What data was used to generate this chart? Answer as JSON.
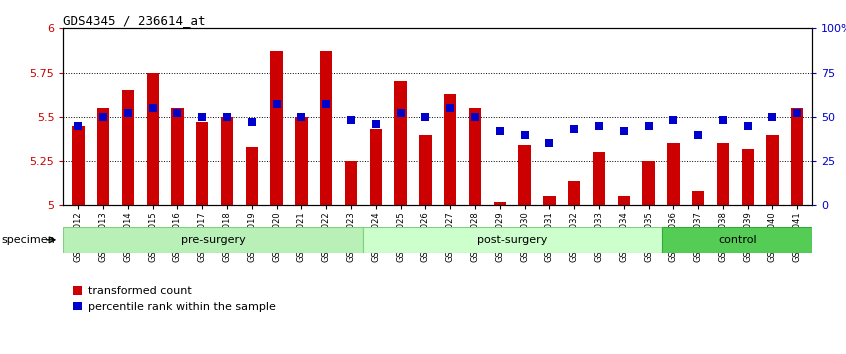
{
  "title": "GDS4345 / 236614_at",
  "samples": [
    "GSM842012",
    "GSM842013",
    "GSM842014",
    "GSM842015",
    "GSM842016",
    "GSM842017",
    "GSM842018",
    "GSM842019",
    "GSM842020",
    "GSM842021",
    "GSM842022",
    "GSM842023",
    "GSM842024",
    "GSM842025",
    "GSM842026",
    "GSM842027",
    "GSM842028",
    "GSM842029",
    "GSM842030",
    "GSM842031",
    "GSM842032",
    "GSM842033",
    "GSM842034",
    "GSM842035",
    "GSM842036",
    "GSM842037",
    "GSM842038",
    "GSM842039",
    "GSM842040",
    "GSM842041"
  ],
  "red_values": [
    5.45,
    5.55,
    5.65,
    5.75,
    5.55,
    5.47,
    5.5,
    5.33,
    5.87,
    5.5,
    5.87,
    5.25,
    5.43,
    5.7,
    5.4,
    5.63,
    5.55,
    5.02,
    5.34,
    5.05,
    5.14,
    5.3,
    5.05,
    5.25,
    5.35,
    5.08,
    5.35,
    5.32,
    5.4,
    5.55
  ],
  "blue_percentiles": [
    45,
    50,
    52,
    55,
    52,
    50,
    50,
    47,
    57,
    50,
    57,
    48,
    46,
    52,
    50,
    55,
    50,
    42,
    40,
    35,
    43,
    45,
    42,
    45,
    48,
    40,
    48,
    45,
    50,
    52
  ],
  "groups": [
    {
      "label": "pre-surgery",
      "start": 0,
      "end": 12,
      "color": "#b8f0b8"
    },
    {
      "label": "post-surgery",
      "start": 12,
      "end": 24,
      "color": "#ccffcc"
    },
    {
      "label": "control",
      "start": 24,
      "end": 30,
      "color": "#55cc55"
    }
  ],
  "ylim_left": [
    5.0,
    6.0
  ],
  "ylim_right": [
    0,
    100
  ],
  "yticks_left": [
    5.0,
    5.25,
    5.5,
    5.75,
    6.0
  ],
  "yticks_right": [
    0,
    25,
    50,
    75,
    100
  ],
  "ytick_labels_left": [
    "5",
    "5.25",
    "5.5",
    "5.75",
    "6"
  ],
  "ytick_labels_right": [
    "0",
    "25",
    "50",
    "75",
    "100%"
  ],
  "grid_values": [
    5.25,
    5.5,
    5.75
  ],
  "bar_color": "#cc0000",
  "dot_color": "#0000cc",
  "bar_width": 0.5,
  "dot_size": 35,
  "specimen_label": "specimen",
  "legend_items": [
    {
      "color": "#cc0000",
      "label": "transformed count"
    },
    {
      "color": "#0000cc",
      "label": "percentile rank within the sample"
    }
  ],
  "xticklabel_fontsize": 6.0,
  "group_label_fontsize": 8,
  "title_fontsize": 9
}
